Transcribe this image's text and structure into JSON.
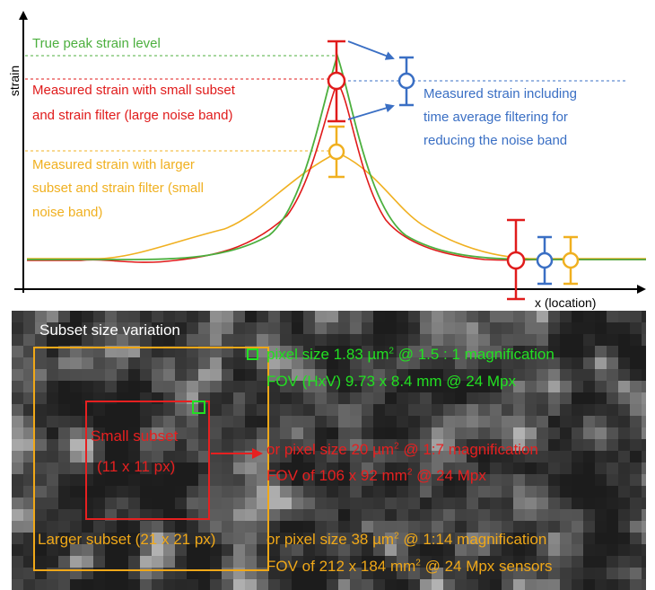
{
  "colors": {
    "green": "#4caf3e",
    "red": "#e01b1b",
    "blue": "#3a6fc4",
    "yellow": "#f0b020",
    "axis": "#000000",
    "bright_green": "#22e022",
    "panel_red": "#e62020",
    "panel_orange": "#f0a818"
  },
  "plot": {
    "y_axis_label": "strain",
    "x_axis_label": "x (location)",
    "annotations": {
      "true_peak": "True peak strain level",
      "measured_small": [
        "Measured strain with small subset",
        "and strain filter (large noise band)"
      ],
      "measured_larger": [
        "Measured strain with larger",
        "subset and strain filter (small",
        "noise band)"
      ],
      "time_average": [
        "Measured strain including",
        "time average filtering for",
        "reducing the noise band"
      ]
    }
  },
  "panel": {
    "title": "Subset size variation",
    "small_subset_label": [
      "Small subset",
      "(11 x 11 px)"
    ],
    "larger_subset_label": "Larger subset (21 x 21 px)",
    "green_line1_pre": "pixel size 1.83 µm",
    "green_line1_sup": "2",
    "green_line1_post": " @ 1.5 : 1 magnification",
    "green_line2": "FOV (HxV) 9.73 x 8.4 mm @ 24 Mpx",
    "red_line1_pre": "or pixel size 20 µm",
    "red_line1_sup": "2",
    "red_line1_post": "  @ 1:7 magnification",
    "red_line2_pre": "FOV of 106 x 92 mm",
    "red_line2_sup": "2",
    "red_line2_post": " @ 24 Mpx",
    "orange_line1_pre": "or pixel size 38 µm",
    "orange_line1_sup": "2",
    "orange_line1_post": " @ 1:14 magnification",
    "orange_line2_pre": "FOV of 212 x 184 mm",
    "orange_line2_sup": "2",
    "orange_line2_post": " @ 24 Mpx sensors"
  }
}
